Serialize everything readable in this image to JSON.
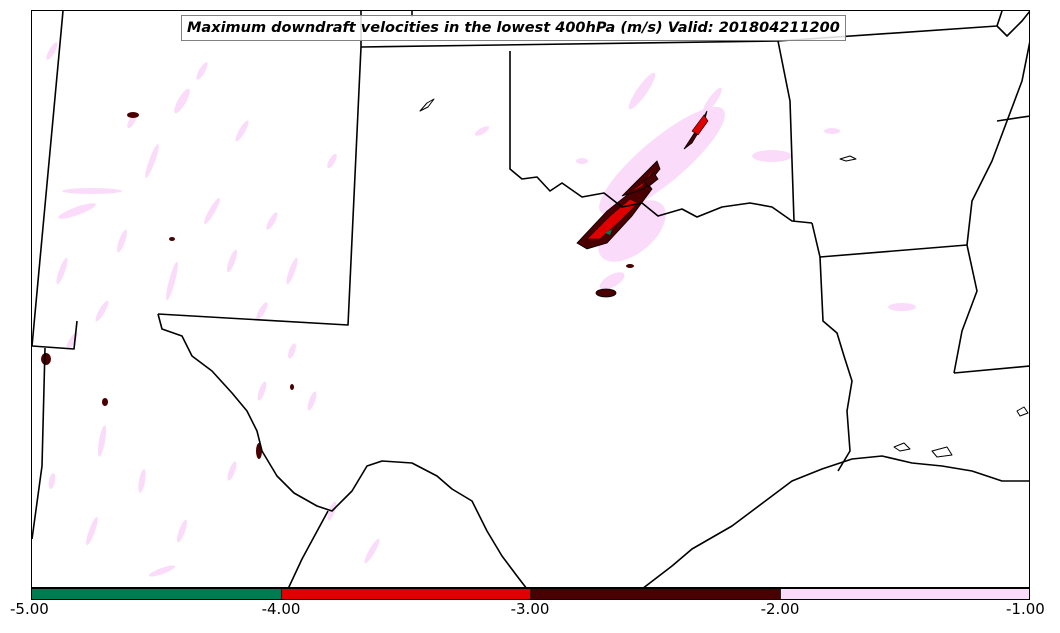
{
  "title": "Maximum downdraft velocities in the lowest 400hPa (m/s) Valid: 201804211200",
  "colorbar": {
    "segments": [
      {
        "from": -5.0,
        "to": -4.0,
        "color": "#007a50"
      },
      {
        "from": -4.0,
        "to": -3.0,
        "color": "#e00000"
      },
      {
        "from": -3.0,
        "to": -2.0,
        "color": "#4a0000"
      },
      {
        "from": -2.0,
        "to": -1.0,
        "color": "#fadcfa"
      }
    ],
    "tick_labels": [
      "-5.00",
      "-4.00",
      "-3.00",
      "-2.00",
      "-1.00"
    ]
  },
  "colors": {
    "border": "#000000",
    "light_speckle": "#fadcfa",
    "dark_red": "#4a0000",
    "red": "#e00000",
    "green": "#007a50"
  }
}
